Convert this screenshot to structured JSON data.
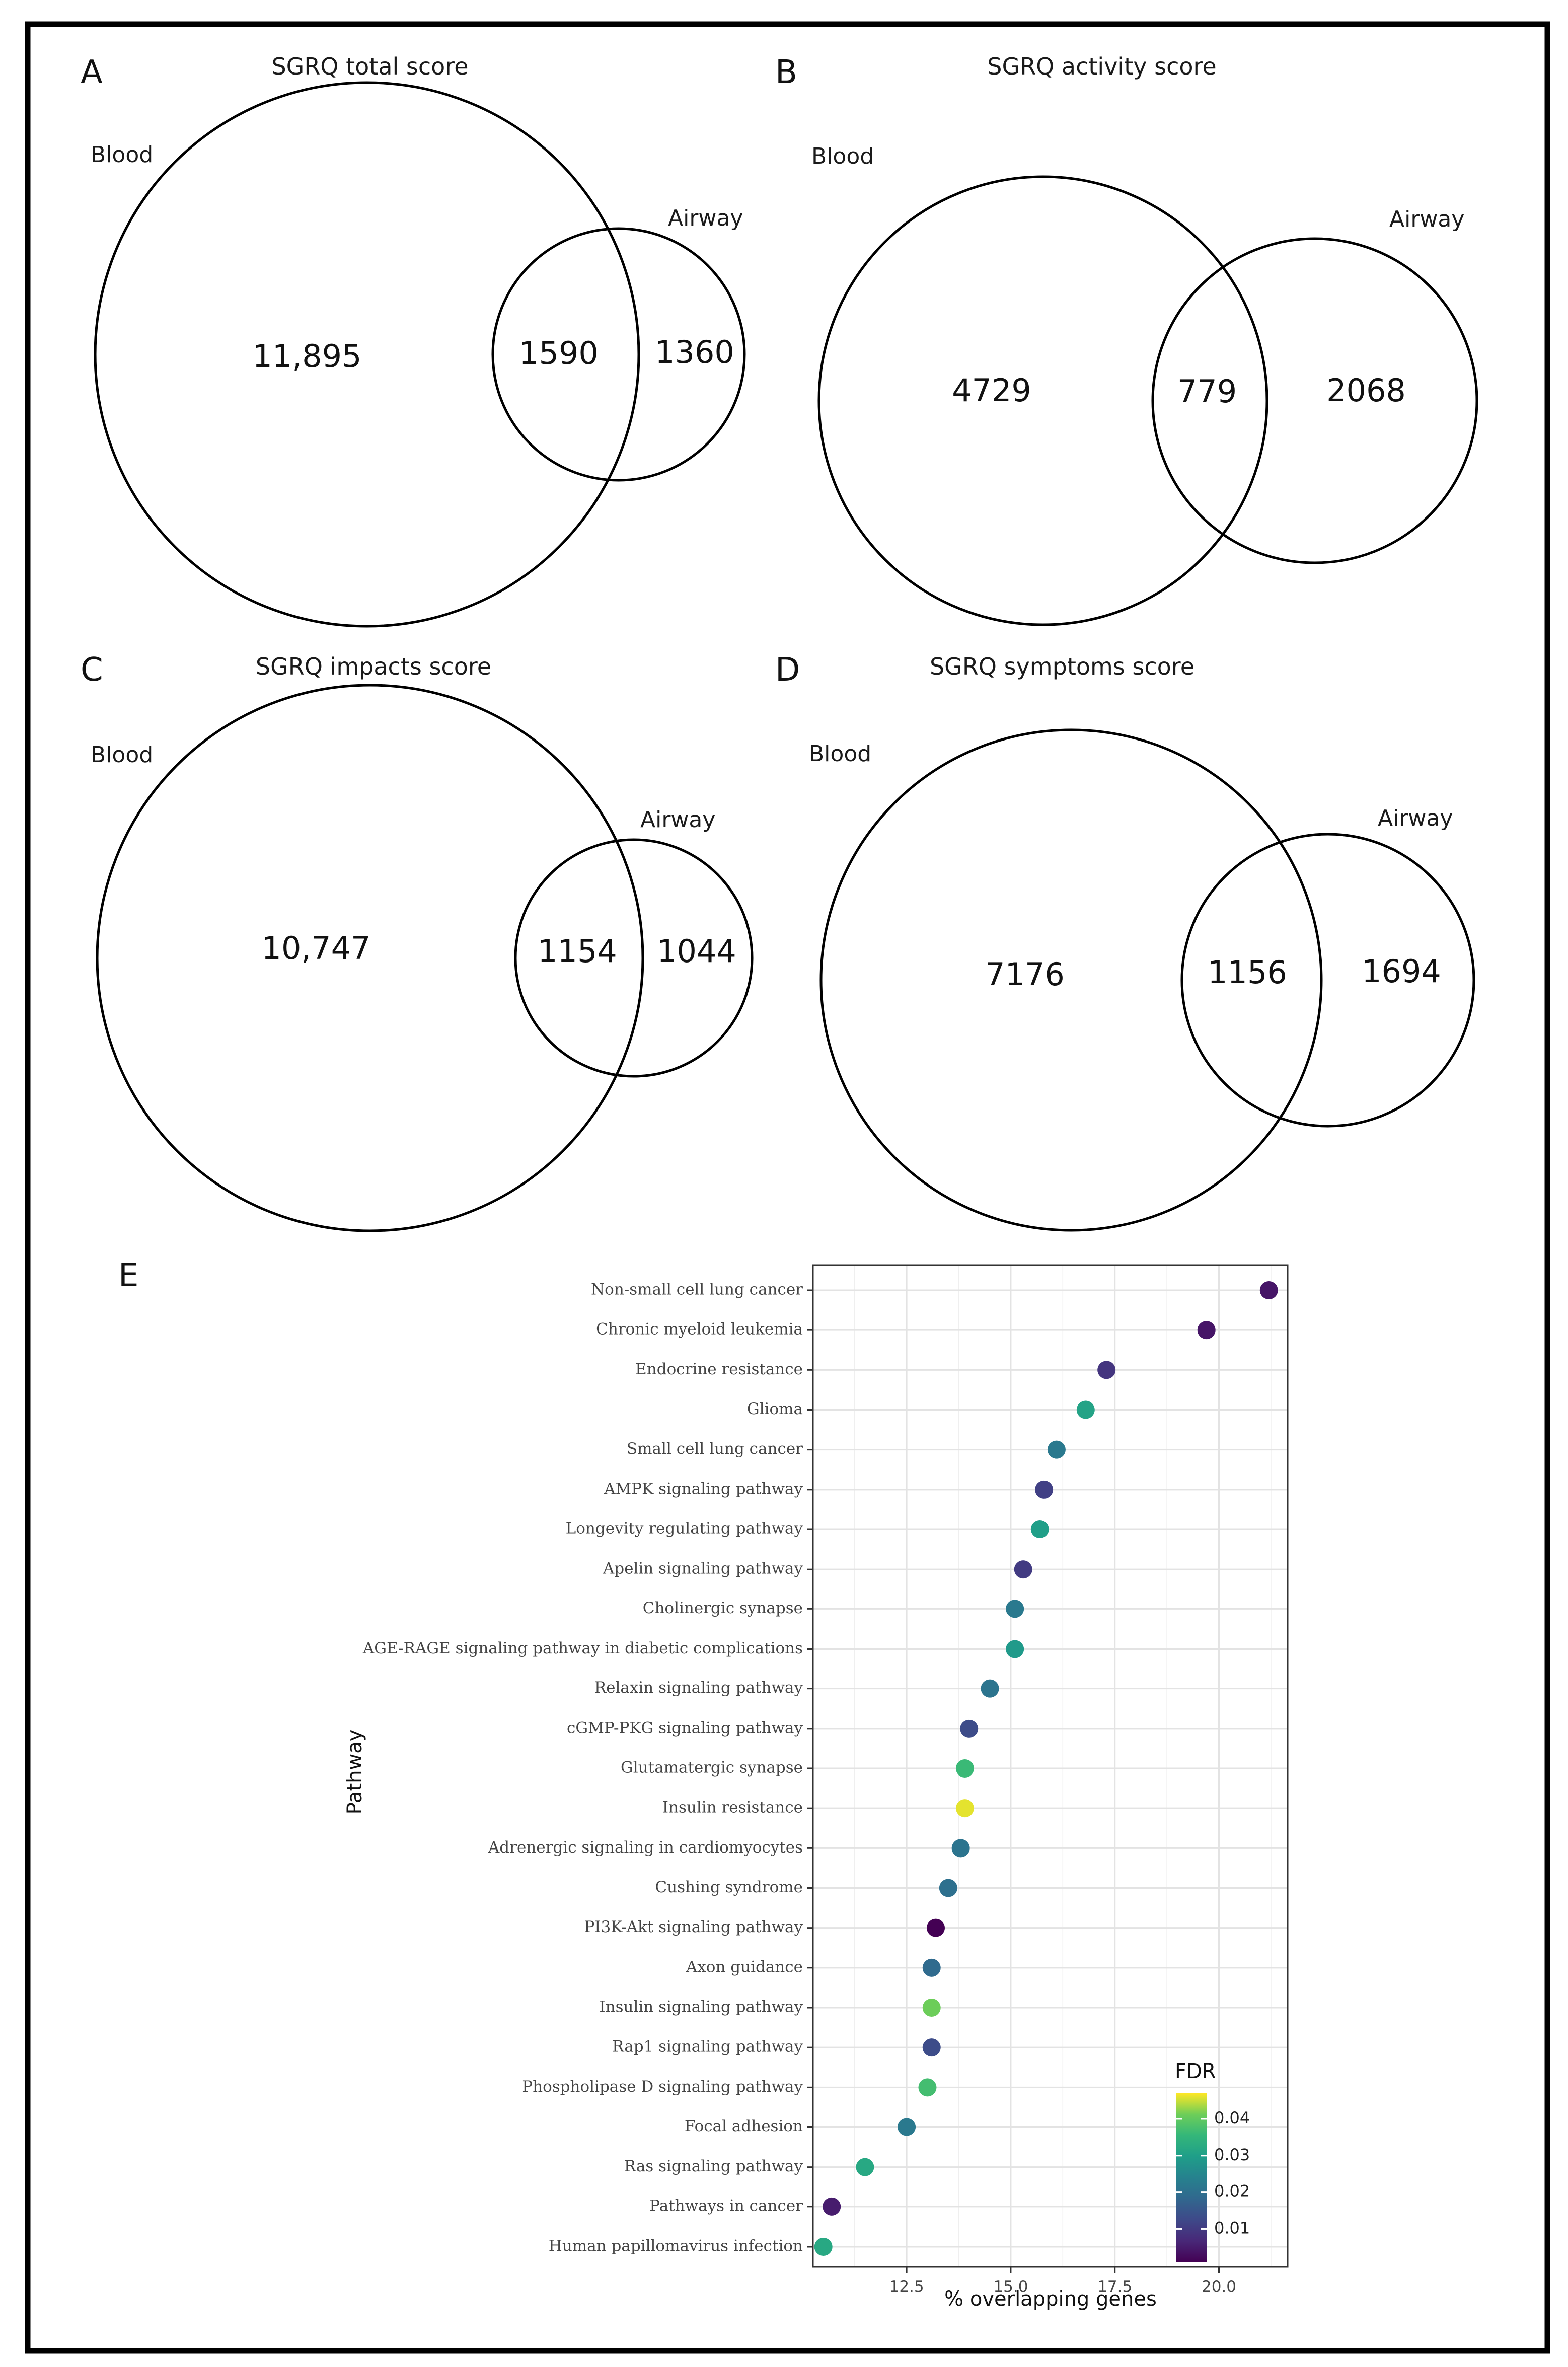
{
  "venns": [
    {
      "letter": "A",
      "title": "SGRQ total score",
      "set_a": "Blood",
      "set_b": "Airway",
      "only_a": "11,895",
      "both": "1590",
      "only_b": "1360"
    },
    {
      "letter": "B",
      "title": "SGRQ activity score",
      "set_a": "Blood",
      "set_b": "Airway",
      "only_a": "4729",
      "both": "779",
      "only_b": "2068"
    },
    {
      "letter": "C",
      "title": "SGRQ impacts score",
      "set_a": "Blood",
      "set_b": "Airway",
      "only_a": "10,747",
      "both": "1154",
      "only_b": "1044"
    },
    {
      "letter": "D",
      "title": "SGRQ symptoms score",
      "set_a": "Blood",
      "set_b": "Airway",
      "only_a": "7176",
      "both": "1156",
      "only_b": "1694"
    }
  ],
  "dotplot": {
    "letter": "E"
  },
  "chart_data": {
    "type": "scatter",
    "xlabel": "% overlapping genes",
    "ylabel": "Pathway",
    "xlim": [
      10.25,
      21.65
    ],
    "xticks": [
      12.5,
      15.0,
      17.5,
      20.0
    ],
    "xtick_labels": [
      "12.5",
      "15.0",
      "17.5",
      "20.0"
    ],
    "color_legend": {
      "title": "FDR",
      "range": [
        0.001,
        0.047
      ],
      "ticks": [
        0.01,
        0.02,
        0.03,
        0.04
      ],
      "tick_labels": [
        "0.01",
        "0.02",
        "0.03",
        "0.04"
      ],
      "colormap": "viridis"
    },
    "points": [
      {
        "pathway": "Non-small cell lung cancer",
        "x": 21.2,
        "fdr": 0.004
      },
      {
        "pathway": "Chronic myeloid leukemia",
        "x": 19.7,
        "fdr": 0.004
      },
      {
        "pathway": "Endocrine resistance",
        "x": 17.3,
        "fdr": 0.009
      },
      {
        "pathway": "Glioma",
        "x": 16.8,
        "fdr": 0.031
      },
      {
        "pathway": "Small cell lung cancer",
        "x": 16.1,
        "fdr": 0.022
      },
      {
        "pathway": "AMPK signaling pathway",
        "x": 15.8,
        "fdr": 0.011
      },
      {
        "pathway": "Longevity regulating pathway",
        "x": 15.7,
        "fdr": 0.03
      },
      {
        "pathway": "Apelin signaling pathway",
        "x": 15.3,
        "fdr": 0.01
      },
      {
        "pathway": "Cholinergic synapse",
        "x": 15.1,
        "fdr": 0.022
      },
      {
        "pathway": "AGE-RAGE signaling pathway in diabetic complications",
        "x": 15.1,
        "fdr": 0.029
      },
      {
        "pathway": "Relaxin signaling pathway",
        "x": 14.5,
        "fdr": 0.021
      },
      {
        "pathway": "cGMP-PKG signaling pathway",
        "x": 14.0,
        "fdr": 0.013
      },
      {
        "pathway": "Glutamatergic synapse",
        "x": 13.9,
        "fdr": 0.036
      },
      {
        "pathway": "Insulin resistance",
        "x": 13.9,
        "fdr": 0.046
      },
      {
        "pathway": "Adrenergic signaling in cardiomyocytes",
        "x": 13.8,
        "fdr": 0.021
      },
      {
        "pathway": "Cushing syndrome",
        "x": 13.5,
        "fdr": 0.02
      },
      {
        "pathway": "PI3K-Akt signaling pathway",
        "x": 13.2,
        "fdr": 0.001
      },
      {
        "pathway": "Axon guidance",
        "x": 13.1,
        "fdr": 0.019
      },
      {
        "pathway": "Insulin signaling pathway",
        "x": 13.1,
        "fdr": 0.041
      },
      {
        "pathway": "Rap1 signaling pathway",
        "x": 13.1,
        "fdr": 0.013
      },
      {
        "pathway": "Phospholipase D signaling pathway",
        "x": 13.0,
        "fdr": 0.037
      },
      {
        "pathway": "Focal adhesion",
        "x": 12.5,
        "fdr": 0.022
      },
      {
        "pathway": "Ras signaling pathway",
        "x": 11.5,
        "fdr": 0.032
      },
      {
        "pathway": "Pathways in cancer",
        "x": 10.7,
        "fdr": 0.005
      },
      {
        "pathway": "Human papillomavirus infection",
        "x": 10.5,
        "fdr": 0.032
      }
    ]
  }
}
